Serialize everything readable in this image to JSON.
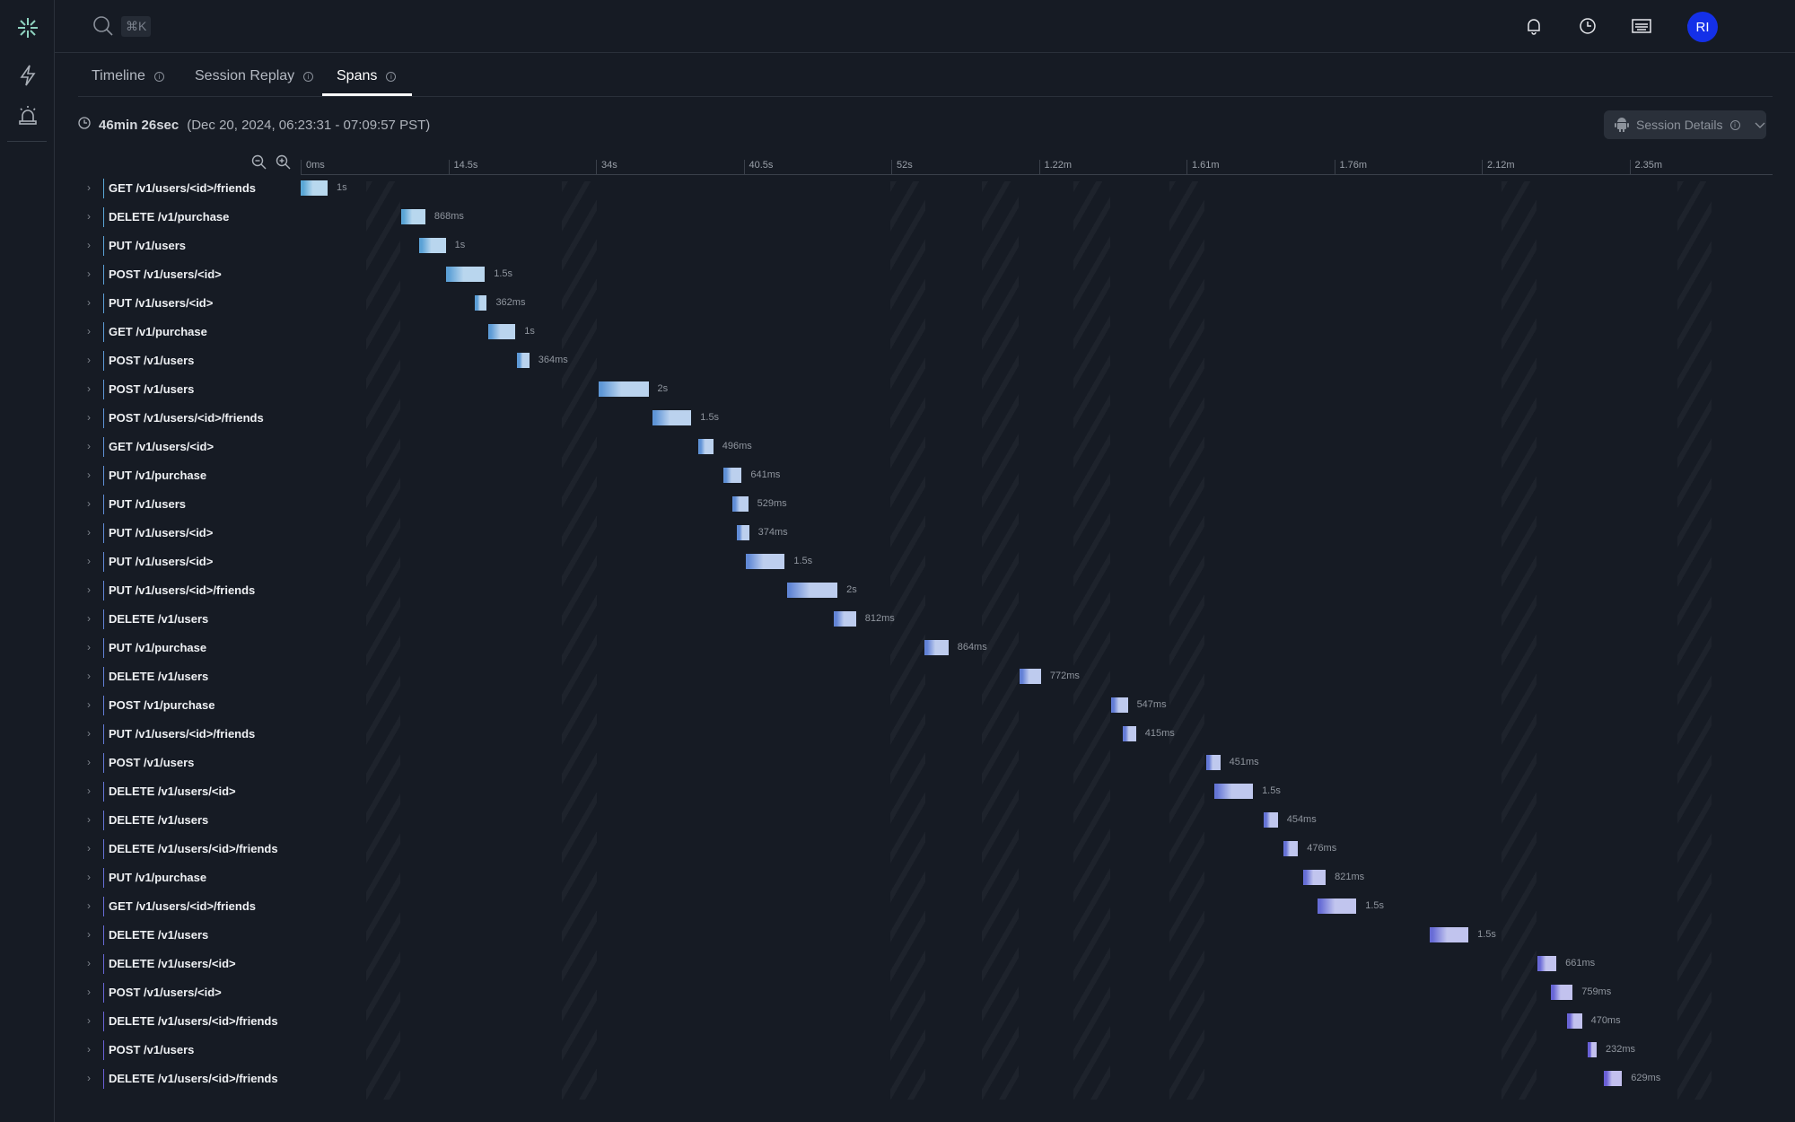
{
  "header": {
    "search_shortcut": "⌘K",
    "avatar_initials": "RI",
    "icons": [
      "bell-icon",
      "clock-icon",
      "keyboard-icon",
      "help-icon"
    ]
  },
  "sidebar": {
    "icons": [
      "logo-icon",
      "lightning-icon",
      "alarm-icon"
    ]
  },
  "tabs": [
    {
      "label": "Timeline"
    },
    {
      "label": "Session Replay"
    },
    {
      "label": "Spans",
      "active": true
    }
  ],
  "session": {
    "duration": "46min 26sec",
    "range": "(Dec 20, 2024, 06:23:31 - 07:09:57 PST)",
    "details_label": "Session Details"
  },
  "colors": {
    "bar_start": "#5aa7d6",
    "bar_end": "#6a5fd6",
    "avatar": "#1430e8"
  },
  "chart_data": {
    "type": "gantt",
    "axis_ticks": [
      {
        "label": "0ms",
        "value": 0
      },
      {
        "label": "14.5s",
        "value": 14.5
      },
      {
        "label": "34s",
        "value": 34
      },
      {
        "label": "40.5s",
        "value": 40.5
      },
      {
        "label": "52s",
        "value": 52
      },
      {
        "label": "1.22m",
        "value": 73.2
      },
      {
        "label": "1.61m",
        "value": 96.6
      },
      {
        "label": "1.76m",
        "value": 105.6
      },
      {
        "label": "2.12m",
        "value": 127.2
      },
      {
        "label": "2.35m",
        "value": 141
      }
    ],
    "spans": [
      {
        "name": "GET /v1/users/<id>/friends",
        "start": 0,
        "duration": 1,
        "duration_label": "1s"
      },
      {
        "name": "DELETE /v1/purchase",
        "start": 9.9,
        "duration": 0.868,
        "duration_label": "868ms"
      },
      {
        "name": "PUT /v1/users",
        "start": 11.6,
        "duration": 1,
        "duration_label": "1s"
      },
      {
        "name": "POST /v1/users/<id>",
        "start": 14.3,
        "duration": 1.5,
        "duration_label": "1.5s"
      },
      {
        "name": "PUT /v1/users/<id>",
        "start": 18.0,
        "duration": 0.362,
        "duration_label": "362ms"
      },
      {
        "name": "GET /v1/purchase",
        "start": 19.8,
        "duration": 1,
        "duration_label": "1s"
      },
      {
        "name": "POST /v1/users",
        "start": 23.6,
        "duration": 0.364,
        "duration_label": "364ms"
      },
      {
        "name": "POST /v1/users",
        "start": 34.1,
        "duration": 2,
        "duration_label": "2s"
      },
      {
        "name": "POST /v1/users/<id>/friends",
        "start": 36.5,
        "duration": 1.5,
        "duration_label": "1.5s"
      },
      {
        "name": "GET /v1/users/<id>",
        "start": 38.5,
        "duration": 0.496,
        "duration_label": "496ms"
      },
      {
        "name": "PUT /v1/purchase",
        "start": 39.6,
        "duration": 0.641,
        "duration_label": "641ms"
      },
      {
        "name": "PUT /v1/users",
        "start": 40.0,
        "duration": 0.529,
        "duration_label": "529ms"
      },
      {
        "name": "PUT /v1/users/<id>",
        "start": 40.2,
        "duration": 0.374,
        "duration_label": "374ms"
      },
      {
        "name": "PUT /v1/users/<id>",
        "start": 40.7,
        "duration": 1.5,
        "duration_label": "1.5s"
      },
      {
        "name": "PUT /v1/users/<id>/friends",
        "start": 43.9,
        "duration": 2,
        "duration_label": "2s"
      },
      {
        "name": "DELETE /v1/users",
        "start": 47.5,
        "duration": 0.812,
        "duration_label": "812ms"
      },
      {
        "name": "PUT /v1/purchase",
        "start": 56.8,
        "duration": 0.864,
        "duration_label": "864ms"
      },
      {
        "name": "DELETE /v1/users",
        "start": 70.4,
        "duration": 0.772,
        "duration_label": "772ms"
      },
      {
        "name": "POST /v1/purchase",
        "start": 84.7,
        "duration": 0.547,
        "duration_label": "547ms"
      },
      {
        "name": "PUT /v1/users/<id>/friends",
        "start": 86.5,
        "duration": 0.415,
        "duration_label": "415ms"
      },
      {
        "name": "POST /v1/users",
        "start": 97.8,
        "duration": 0.451,
        "duration_label": "451ms"
      },
      {
        "name": "DELETE /v1/users/<id>",
        "start": 98.3,
        "duration": 1.5,
        "duration_label": "1.5s"
      },
      {
        "name": "DELETE /v1/users",
        "start": 101.3,
        "duration": 0.454,
        "duration_label": "454ms"
      },
      {
        "name": "DELETE /v1/users/<id>/friends",
        "start": 102.5,
        "duration": 0.476,
        "duration_label": "476ms"
      },
      {
        "name": "PUT /v1/purchase",
        "start": 103.7,
        "duration": 0.821,
        "duration_label": "821ms"
      },
      {
        "name": "GET /v1/users/<id>/friends",
        "start": 104.6,
        "duration": 1.5,
        "duration_label": "1.5s"
      },
      {
        "name": "DELETE /v1/users",
        "start": 119.6,
        "duration": 1.5,
        "duration_label": "1.5s"
      },
      {
        "name": "DELETE /v1/users/<id>",
        "start": 132.4,
        "duration": 0.661,
        "duration_label": "661ms"
      },
      {
        "name": "POST /v1/users/<id>",
        "start": 133.7,
        "duration": 0.759,
        "duration_label": "759ms"
      },
      {
        "name": "DELETE /v1/users/<id>/friends",
        "start": 135.2,
        "duration": 0.47,
        "duration_label": "470ms"
      },
      {
        "name": "POST /v1/users",
        "start": 137.1,
        "duration": 0.232,
        "duration_label": "232ms"
      },
      {
        "name": "DELETE /v1/users/<id>/friends",
        "start": 138.6,
        "duration": 0.629,
        "duration_label": "629ms"
      }
    ]
  }
}
